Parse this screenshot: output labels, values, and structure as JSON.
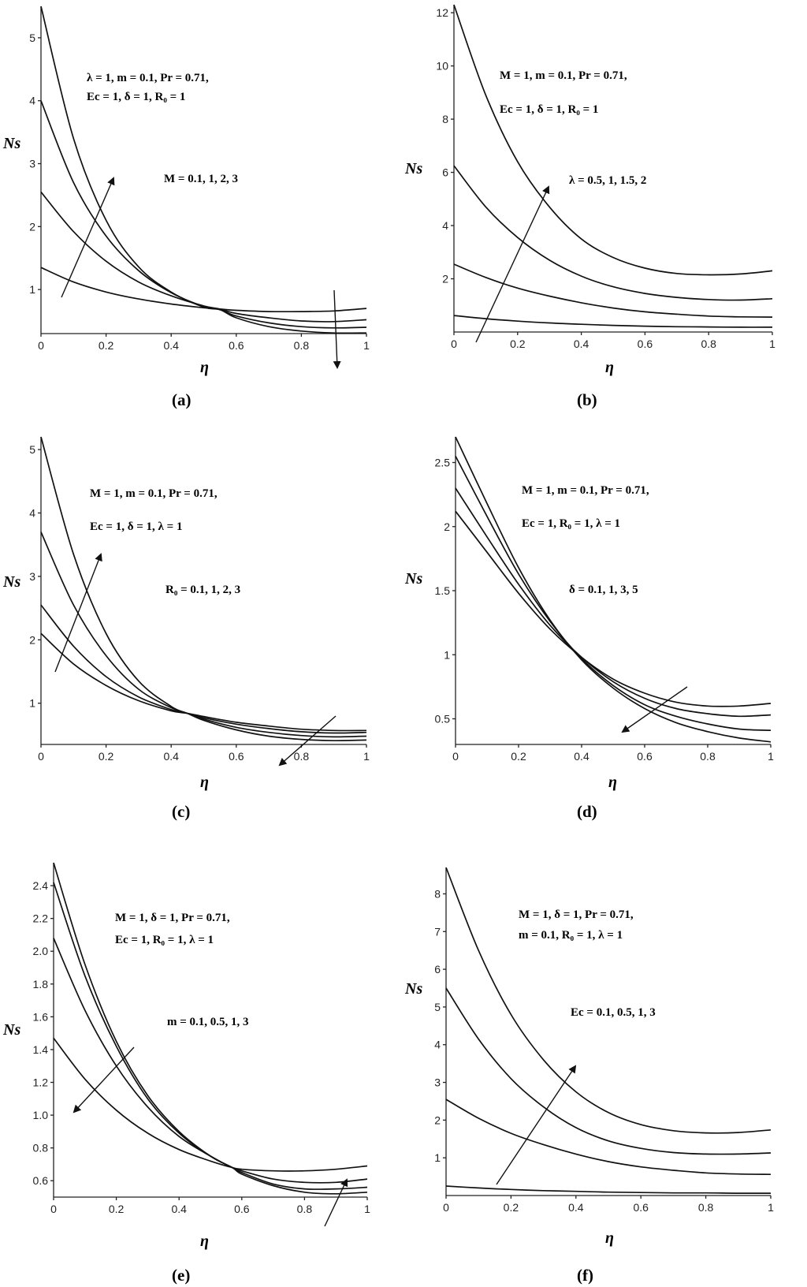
{
  "chart_data": [
    {
      "id": "a",
      "type": "line",
      "caption": "(a)",
      "xlabel": "η",
      "ylabel": "Ns",
      "xlim": [
        0,
        1
      ],
      "ylim": [
        0.3,
        5.5
      ],
      "xticks": [
        0,
        0.2,
        0.4,
        0.6,
        0.8,
        1
      ],
      "xtick_labels": [
        "0",
        "0.2",
        "0.4",
        "0.6",
        "0.8",
        "1"
      ],
      "yticks": [
        1,
        2,
        3,
        4,
        5
      ],
      "ytick_labels": [
        "1",
        "2",
        "3",
        "4",
        "5"
      ],
      "annotations": [
        "λ = 1, m = 0.1, Pr = 0.71,",
        "Ec = 1, δ = 1, R₀ = 1",
        "M = 0.1, 1, 2, 3"
      ],
      "x": [
        0,
        0.1,
        0.2,
        0.3,
        0.4,
        0.5,
        0.55,
        0.6,
        0.7,
        0.8,
        0.9,
        1
      ],
      "series": [
        {
          "name": "M = 0.1",
          "values": [
            1.35,
            1.12,
            0.96,
            0.85,
            0.77,
            0.71,
            0.69,
            0.67,
            0.65,
            0.65,
            0.66,
            0.7
          ]
        },
        {
          "name": "M = 1",
          "values": [
            2.55,
            1.92,
            1.45,
            1.12,
            0.9,
            0.74,
            0.69,
            0.62,
            0.55,
            0.5,
            0.49,
            0.52
          ]
        },
        {
          "name": "M = 2",
          "values": [
            4.0,
            2.7,
            1.85,
            1.3,
            0.95,
            0.73,
            0.68,
            0.58,
            0.47,
            0.41,
            0.39,
            0.4
          ]
        },
        {
          "name": "M = 3",
          "values": [
            5.5,
            3.4,
            2.1,
            1.36,
            0.96,
            0.72,
            0.68,
            0.55,
            0.41,
            0.34,
            0.31,
            0.31
          ]
        }
      ]
    },
    {
      "id": "b",
      "type": "line",
      "caption": "(b)",
      "xlabel": "η",
      "ylabel": "Ns",
      "xlim": [
        0,
        1
      ],
      "ylim": [
        0,
        12.3
      ],
      "xticks": [
        0,
        0.2,
        0.4,
        0.6,
        0.8,
        1
      ],
      "xtick_labels": [
        "0",
        "0.2",
        "0.4",
        "0.6",
        "0.8",
        "1"
      ],
      "yticks": [
        2,
        4,
        6,
        8,
        10,
        12
      ],
      "ytick_labels": [
        "2",
        "4",
        "6",
        "8",
        "10",
        "12"
      ],
      "annotations": [
        "M = 1, m = 0.1, Pr = 0.71,",
        "Ec = 1, δ = 1, R₀ = 1",
        "λ = 0.5, 1, 1.5, 2"
      ],
      "x": [
        0,
        0.1,
        0.2,
        0.3,
        0.4,
        0.5,
        0.6,
        0.7,
        0.8,
        0.9,
        1
      ],
      "series": [
        {
          "name": "λ = 0.5",
          "values": [
            0.62,
            0.5,
            0.41,
            0.34,
            0.29,
            0.25,
            0.22,
            0.2,
            0.19,
            0.18,
            0.18
          ]
        },
        {
          "name": "λ = 1",
          "values": [
            2.55,
            2.05,
            1.65,
            1.35,
            1.1,
            0.9,
            0.76,
            0.67,
            0.6,
            0.57,
            0.56
          ]
        },
        {
          "name": "λ = 1.5",
          "values": [
            6.25,
            4.7,
            3.55,
            2.7,
            2.1,
            1.7,
            1.45,
            1.3,
            1.22,
            1.2,
            1.25
          ]
        },
        {
          "name": "λ = 2",
          "values": [
            12.3,
            8.9,
            6.4,
            4.7,
            3.5,
            2.8,
            2.4,
            2.2,
            2.15,
            2.18,
            2.3
          ]
        }
      ]
    },
    {
      "id": "c",
      "type": "line",
      "caption": "(c)",
      "xlabel": "η",
      "ylabel": "Ns",
      "xlim": [
        0,
        1
      ],
      "ylim": [
        0.35,
        5.2
      ],
      "xticks": [
        0,
        0.2,
        0.4,
        0.6,
        0.8,
        1
      ],
      "xtick_labels": [
        "0",
        "0.2",
        "0.4",
        "0.6",
        "0.8",
        "1"
      ],
      "yticks": [
        1,
        2,
        3,
        4,
        5
      ],
      "ytick_labels": [
        "1",
        "2",
        "3",
        "4",
        "5"
      ],
      "annotations": [
        "M = 1, m = 0.1, Pr = 0.71,",
        "Ec = 1, δ = 1, λ = 1",
        "R₀ = 0.1, 1, 2, 3"
      ],
      "x": [
        0,
        0.1,
        0.2,
        0.3,
        0.4,
        0.45,
        0.5,
        0.6,
        0.7,
        0.8,
        0.9,
        1
      ],
      "series": [
        {
          "name": "R₀ = 0.1",
          "values": [
            2.1,
            1.62,
            1.28,
            1.04,
            0.88,
            0.84,
            0.79,
            0.7,
            0.64,
            0.59,
            0.57,
            0.57
          ]
        },
        {
          "name": "R₀ = 1",
          "values": [
            2.55,
            1.9,
            1.42,
            1.1,
            0.9,
            0.84,
            0.77,
            0.67,
            0.6,
            0.55,
            0.53,
            0.54
          ]
        },
        {
          "name": "R₀ = 2",
          "values": [
            3.7,
            2.55,
            1.75,
            1.22,
            0.93,
            0.84,
            0.75,
            0.62,
            0.54,
            0.49,
            0.47,
            0.48
          ]
        },
        {
          "name": "R₀ = 3",
          "values": [
            5.2,
            3.35,
            2.1,
            1.35,
            0.95,
            0.84,
            0.73,
            0.58,
            0.48,
            0.43,
            0.41,
            0.42
          ]
        }
      ]
    },
    {
      "id": "d",
      "type": "line",
      "caption": "(d)",
      "xlabel": "η",
      "ylabel": "Ns",
      "xlim": [
        0,
        1
      ],
      "ylim": [
        0.3,
        2.7
      ],
      "xticks": [
        0,
        0.2,
        0.4,
        0.6,
        0.8,
        1
      ],
      "xtick_labels": [
        "0",
        "0.2",
        "0.4",
        "0.6",
        "0.8",
        "1"
      ],
      "yticks": [
        0.5,
        1,
        1.5,
        2,
        2.5
      ],
      "ytick_labels": [
        "0.5",
        "1",
        "1.5",
        "2",
        "2.5"
      ],
      "annotations": [
        "M = 1, m = 0.1, Pr = 0.71,",
        "Ec = 1, R₀ = 1, λ = 1",
        "δ = 0.1, 1, 3, 5"
      ],
      "x": [
        0,
        0.1,
        0.2,
        0.3,
        0.4,
        0.5,
        0.6,
        0.7,
        0.8,
        0.9,
        1
      ],
      "series": [
        {
          "name": "δ = 0.1",
          "values": [
            2.12,
            1.8,
            1.48,
            1.2,
            0.98,
            0.81,
            0.7,
            0.63,
            0.6,
            0.6,
            0.62
          ]
        },
        {
          "name": "δ = 1",
          "values": [
            2.3,
            1.92,
            1.55,
            1.23,
            0.98,
            0.79,
            0.66,
            0.58,
            0.54,
            0.52,
            0.53
          ]
        },
        {
          "name": "δ = 3",
          "values": [
            2.55,
            2.08,
            1.63,
            1.26,
            0.97,
            0.76,
            0.61,
            0.52,
            0.46,
            0.42,
            0.41
          ]
        },
        {
          "name": "δ = 5",
          "values": [
            2.7,
            2.18,
            1.68,
            1.27,
            0.96,
            0.74,
            0.58,
            0.47,
            0.4,
            0.35,
            0.32
          ]
        }
      ]
    },
    {
      "id": "e",
      "type": "line",
      "caption": "(e)",
      "xlabel": "η",
      "ylabel": "Ns",
      "xlim": [
        0,
        1
      ],
      "ylim": [
        0.5,
        2.54
      ],
      "xticks": [
        0,
        0.2,
        0.4,
        0.6,
        0.8,
        1
      ],
      "xtick_labels": [
        "0",
        "0.2",
        "0.4",
        "0.6",
        "0.8",
        "1"
      ],
      "yticks": [
        0.6,
        0.8,
        1.0,
        1.2,
        1.4,
        1.6,
        1.8,
        2.0,
        2.2,
        2.4
      ],
      "ytick_labels": [
        "0.6",
        "0.8",
        "1.0",
        "1.2",
        "1.4",
        "1.6",
        "1.8",
        "2.0",
        "2.2",
        "2.4"
      ],
      "annotations": [
        "M = 1, δ = 1, Pr = 0.71,",
        "Ec = 1, R₀ = 1, λ = 1",
        "m = 0.1, 0.5, 1, 3"
      ],
      "x": [
        0,
        0.1,
        0.2,
        0.3,
        0.4,
        0.5,
        0.57,
        0.6,
        0.7,
        0.8,
        0.9,
        1
      ],
      "series": [
        {
          "name": "m = 3",
          "values": [
            1.47,
            1.22,
            1.03,
            0.89,
            0.79,
            0.72,
            0.68,
            0.67,
            0.66,
            0.66,
            0.67,
            0.69
          ]
        },
        {
          "name": "m = 1",
          "values": [
            2.08,
            1.64,
            1.3,
            1.05,
            0.87,
            0.75,
            0.68,
            0.66,
            0.61,
            0.59,
            0.59,
            0.61
          ]
        },
        {
          "name": "m = 0.5",
          "values": [
            2.42,
            1.85,
            1.42,
            1.1,
            0.89,
            0.75,
            0.68,
            0.65,
            0.58,
            0.55,
            0.55,
            0.56
          ]
        },
        {
          "name": "m = 0.1",
          "values": [
            2.54,
            1.92,
            1.45,
            1.12,
            0.9,
            0.75,
            0.68,
            0.64,
            0.57,
            0.53,
            0.52,
            0.53
          ]
        }
      ]
    },
    {
      "id": "f",
      "type": "line",
      "caption": "(f)",
      "xlabel": "η",
      "ylabel": "Ns",
      "xlim": [
        0,
        1
      ],
      "ylim": [
        0,
        8.7
      ],
      "xticks": [
        0,
        0.2,
        0.4,
        0.6,
        0.8,
        1
      ],
      "xtick_labels": [
        "0",
        "0.2",
        "0.4",
        "0.6",
        "0.8",
        "1"
      ],
      "yticks": [
        1,
        2,
        3,
        4,
        5,
        6,
        7,
        8
      ],
      "ytick_labels": [
        "1",
        "2",
        "3",
        "4",
        "5",
        "6",
        "7",
        "8"
      ],
      "annotations": [
        "M = 1, δ = 1, Pr = 0.71,",
        "m = 0.1, R₀ = 1, λ = 1",
        "Ec = 0.1, 0.5, 1, 3"
      ],
      "x": [
        0,
        0.1,
        0.2,
        0.3,
        0.4,
        0.5,
        0.6,
        0.7,
        0.8,
        0.9,
        1
      ],
      "series": [
        {
          "name": "Ec = 0.1",
          "values": [
            0.25,
            0.2,
            0.16,
            0.13,
            0.11,
            0.09,
            0.08,
            0.07,
            0.07,
            0.06,
            0.06
          ]
        },
        {
          "name": "Ec = 0.5",
          "values": [
            2.55,
            2.05,
            1.65,
            1.35,
            1.1,
            0.9,
            0.76,
            0.67,
            0.6,
            0.57,
            0.56
          ]
        },
        {
          "name": "Ec = 1",
          "values": [
            5.5,
            4.15,
            3.1,
            2.35,
            1.8,
            1.45,
            1.25,
            1.14,
            1.1,
            1.1,
            1.13
          ]
        },
        {
          "name": "Ec = 3",
          "values": [
            8.7,
            6.5,
            4.8,
            3.6,
            2.75,
            2.2,
            1.88,
            1.72,
            1.66,
            1.67,
            1.74
          ]
        }
      ]
    }
  ]
}
